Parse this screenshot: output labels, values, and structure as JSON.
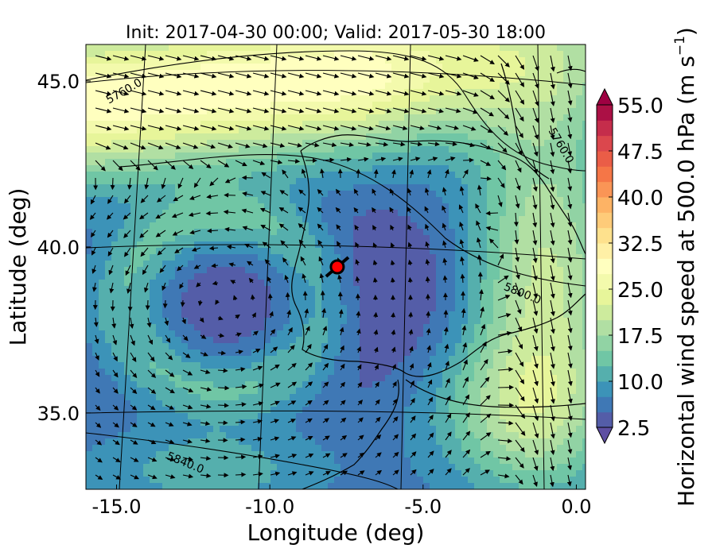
{
  "chart_data": {
    "type": "heatmap",
    "title": "Init: 2017-04-30 00:00; Valid: 2017-05-30 18:00",
    "xlabel": "Longitude (deg)",
    "ylabel": "Latitude (deg)",
    "xlim": [
      -16.0,
      0.3
    ],
    "ylim": [
      32.7,
      46.1
    ],
    "x_ticks": [
      -15.0,
      -10.0,
      -5.0,
      0.0
    ],
    "x_tick_labels": [
      "-15.0",
      "-10.0",
      "-5.0",
      "0.0"
    ],
    "y_ticks": [
      35.0,
      40.0,
      45.0
    ],
    "y_tick_labels": [
      "35.0",
      "40.0",
      "45.0"
    ],
    "colorbar": {
      "label": "Horizontal wind speed at 500.0 hPa (m s$^{-1}$)",
      "label_text": "Horizontal wind speed at 500.0 hPa (m s",
      "label_sup": "−1",
      "label_close": ")",
      "min": 2.5,
      "max": 55.0,
      "step": 2.5,
      "tick_values": [
        2.5,
        10.0,
        17.5,
        25.0,
        32.5,
        40.0,
        47.5,
        55.0
      ],
      "tick_labels": [
        "2.5",
        "10.0",
        "17.5",
        "25.0",
        "32.5",
        "40.0",
        "47.5",
        "55.0"
      ],
      "colormap": "Spectral_r",
      "extend": "both"
    },
    "contour_labels": [
      {
        "text": "5760.0",
        "lon": -14.7,
        "lat": 44.6,
        "angle": -30
      },
      {
        "text": "5760.0",
        "lon": -0.6,
        "lat": 43.0,
        "angle": 60
      },
      {
        "text": "5800.0",
        "lon": -1.8,
        "lat": 38.5,
        "angle": 22
      },
      {
        "text": "5840.0",
        "lon": -12.8,
        "lat": 33.4,
        "angle": 22
      }
    ],
    "marker": {
      "lon": -7.8,
      "lat": 39.4,
      "color": "#ff0000"
    },
    "grid": true,
    "overlays": [
      "geopotential height contours",
      "wind vectors",
      "coastlines"
    ]
  }
}
